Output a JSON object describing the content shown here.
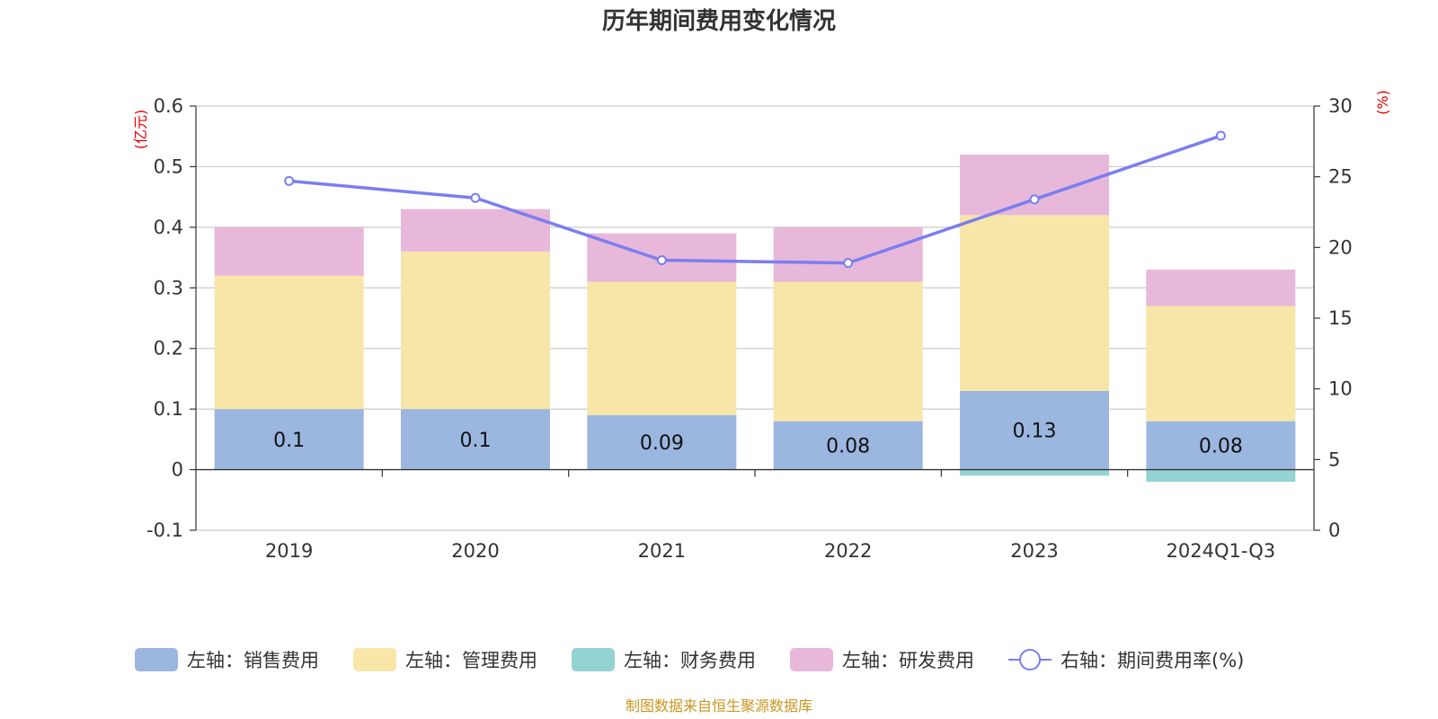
{
  "chart_data": {
    "type": "bar",
    "title": "历年期间费用变化情况",
    "categories": [
      "2019",
      "2020",
      "2021",
      "2022",
      "2023",
      "2024Q1-Q3"
    ],
    "left_axis": {
      "unit_label": "(亿元)",
      "ylim": [
        -0.1,
        0.6
      ],
      "ticks": [
        -0.1,
        0,
        0.1,
        0.2,
        0.3,
        0.4,
        0.5,
        0.6
      ],
      "tick_labels": [
        "-0.1",
        "0",
        "0.1",
        "0.2",
        "0.3",
        "0.4",
        "0.5",
        "0.6"
      ]
    },
    "right_axis": {
      "unit_label": "(%)",
      "ylim": [
        0,
        30
      ],
      "ticks": [
        0,
        5,
        10,
        15,
        20,
        25,
        30
      ],
      "tick_labels": [
        "0",
        "5",
        "10",
        "15",
        "20",
        "25",
        "30"
      ]
    },
    "series": [
      {
        "name": "左轴：销售费用",
        "type": "bar",
        "axis": "left",
        "stack": true,
        "color": "#9bb7e0",
        "values": [
          0.1,
          0.1,
          0.09,
          0.08,
          0.13,
          0.08
        ],
        "labels": [
          "0.1",
          "0.1",
          "0.09",
          "0.08",
          "0.13",
          "0.08"
        ]
      },
      {
        "name": "左轴：管理费用",
        "type": "bar",
        "axis": "left",
        "stack": true,
        "color": "#f8e6a8",
        "values": [
          0.22,
          0.26,
          0.22,
          0.23,
          0.29,
          0.19
        ]
      },
      {
        "name": "左轴：财务费用",
        "type": "bar",
        "axis": "left",
        "stack": true,
        "color": "#94d3d4",
        "values": [
          0,
          0,
          0,
          0,
          -0.01,
          -0.02
        ]
      },
      {
        "name": "左轴：研发费用",
        "type": "bar",
        "axis": "left",
        "stack": true,
        "color": "#e7b8d9",
        "values": [
          0.08,
          0.07,
          0.08,
          0.09,
          0.1,
          0.06
        ]
      },
      {
        "name": "右轴：期间费用率(%)",
        "type": "line",
        "axis": "right",
        "color": "#7b7ef0",
        "values": [
          24.7,
          23.5,
          19.1,
          18.9,
          23.4,
          27.9
        ]
      }
    ],
    "legend_position": "bottom",
    "source_note": "制图数据来自恒生聚源数据库"
  }
}
